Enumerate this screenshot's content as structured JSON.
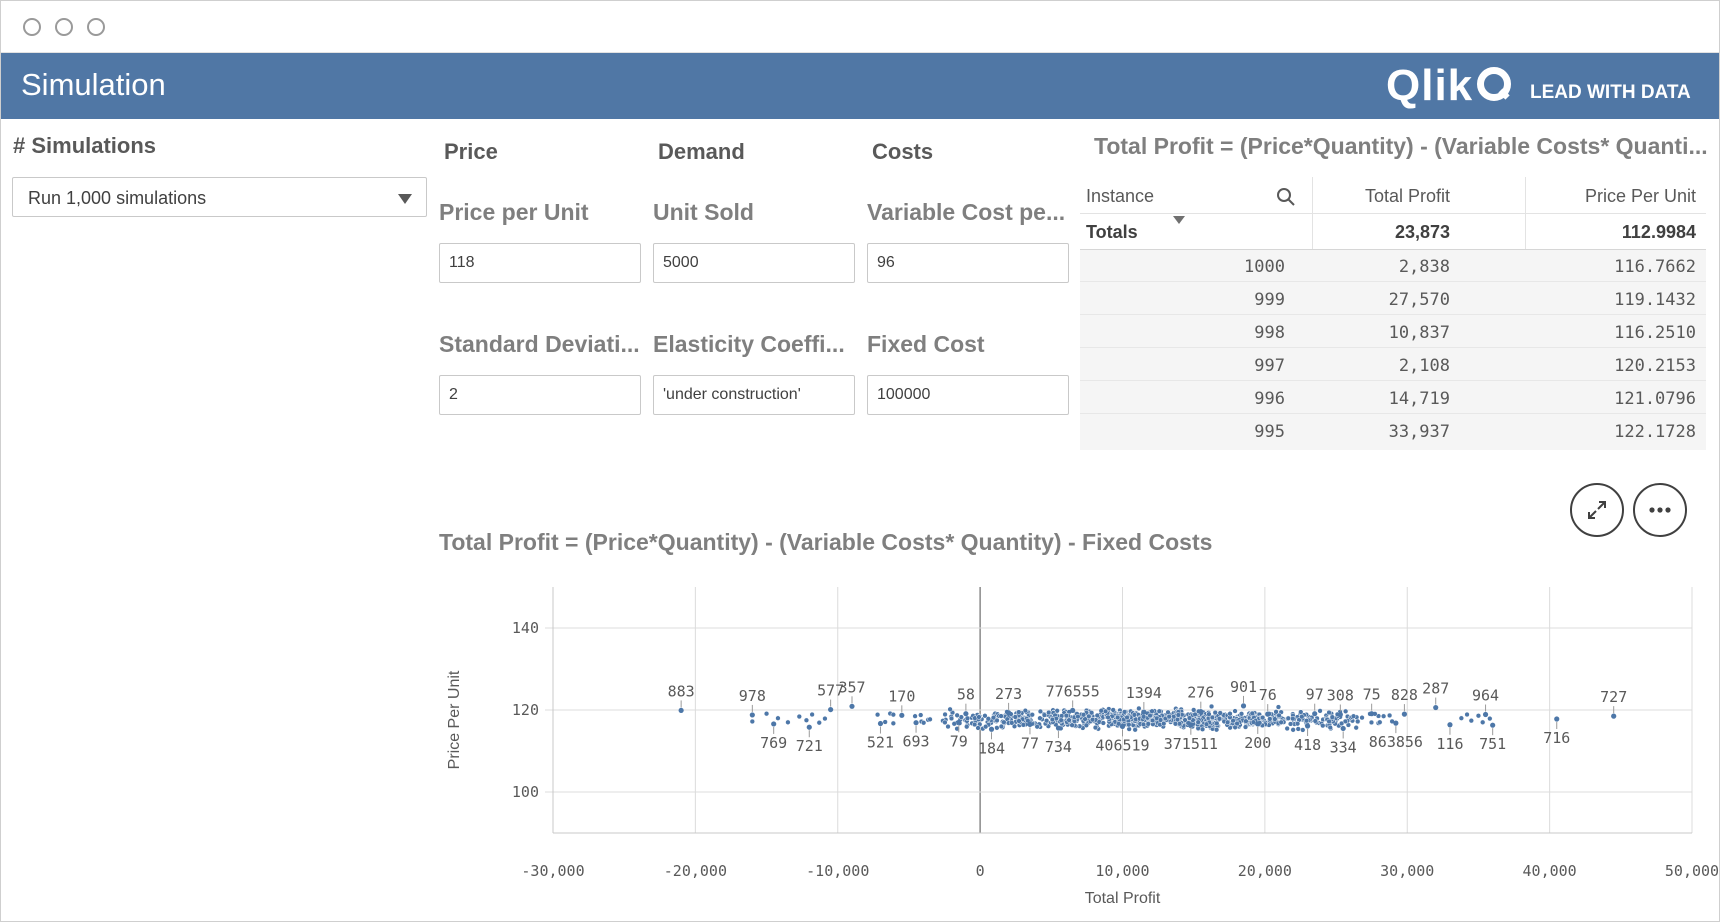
{
  "header": {
    "title": "Simulation",
    "logo_text": "Qlik",
    "tagline": "LEAD WITH DATA"
  },
  "simulations": {
    "label": "# Simulations",
    "selected": "Run 1,000 simulations"
  },
  "inputs": {
    "columns": [
      "Price",
      "Demand",
      "Costs"
    ],
    "row1": [
      {
        "label": "Price per Unit",
        "value": "118"
      },
      {
        "label": "Unit Sold",
        "value": "5000"
      },
      {
        "label": "Variable Cost pe...",
        "value": "96"
      }
    ],
    "row2": [
      {
        "label": "Standard Deviati...",
        "value": "2"
      },
      {
        "label": "Elasticity Coeffi...",
        "value": "'under construction'"
      },
      {
        "label": "Fixed Cost",
        "value": "100000"
      }
    ]
  },
  "table": {
    "title": "Total Profit = (Price*Quantity) - (Variable Costs* Quanti...",
    "headers": [
      "Instance",
      "Total Profit",
      "Price Per Unit"
    ],
    "totals": {
      "label": "Totals",
      "profit": "23,873",
      "price": "112.9984"
    },
    "rows": [
      {
        "instance": "1000",
        "profit": "2,838",
        "price": "116.7662"
      },
      {
        "instance": "999",
        "profit": "27,570",
        "price": "119.1432"
      },
      {
        "instance": "998",
        "profit": "10,837",
        "price": "116.2510"
      },
      {
        "instance": "997",
        "profit": "2,108",
        "price": "120.2153"
      },
      {
        "instance": "996",
        "profit": "14,719",
        "price": "121.0796"
      },
      {
        "instance": "995",
        "profit": "33,937",
        "price": "122.1728"
      }
    ]
  },
  "icons": {
    "expand": "expand-icon",
    "more": "more-icon",
    "search": "search-icon"
  },
  "chart_data": {
    "type": "scatter",
    "title": "Total Profit = (Price*Quantity) - (Variable Costs* Quantity) - Fixed Costs",
    "xlabel": "Total Profit",
    "ylabel": "Price Per Unit",
    "xlim": [
      -30000,
      50000
    ],
    "ylim": [
      90,
      150
    ],
    "xticks": [
      "-30,000",
      "-20,000",
      "-10,000",
      "0",
      "10,000",
      "20,000",
      "30,000",
      "40,000",
      "50,000"
    ],
    "yticks": [
      "100",
      "120",
      "140"
    ],
    "grid": true,
    "color": "#4d77a8",
    "labeled_points": [
      {
        "label": "883",
        "x": -21000,
        "y": 119.9
      },
      {
        "label": "978",
        "x": -16000,
        "y": 118.8
      },
      {
        "label": "769",
        "x": -14500,
        "y": 116.6
      },
      {
        "label": "721",
        "x": -12000,
        "y": 115.8
      },
      {
        "label": "577",
        "x": -10500,
        "y": 120.1
      },
      {
        "label": "357",
        "x": -9000,
        "y": 120.9
      },
      {
        "label": "521",
        "x": -7000,
        "y": 116.7
      },
      {
        "label": "170",
        "x": -5500,
        "y": 118.7
      },
      {
        "label": "693",
        "x": -4500,
        "y": 116.9
      },
      {
        "label": "79",
        "x": -1500,
        "y": 117.0
      },
      {
        "label": "58",
        "x": -1000,
        "y": 119.1
      },
      {
        "label": "184",
        "x": 800,
        "y": 115.3
      },
      {
        "label": "273",
        "x": 2000,
        "y": 119.3
      },
      {
        "label": "77",
        "x": 3500,
        "y": 116.5
      },
      {
        "label": "734",
        "x": 5500,
        "y": 115.6
      },
      {
        "label": "776555",
        "x": 6500,
        "y": 119.9
      },
      {
        "label": "406519",
        "x": 10000,
        "y": 116.0
      },
      {
        "label": "1394",
        "x": 11500,
        "y": 119.5
      },
      {
        "label": "371511",
        "x": 14800,
        "y": 116.4
      },
      {
        "label": "276",
        "x": 15500,
        "y": 119.6
      },
      {
        "label": "901",
        "x": 18500,
        "y": 121.0
      },
      {
        "label": "200",
        "x": 19500,
        "y": 116.6
      },
      {
        "label": "76",
        "x": 20200,
        "y": 119.0
      },
      {
        "label": "418",
        "x": 23000,
        "y": 116.1
      },
      {
        "label": "97",
        "x": 23500,
        "y": 119.1
      },
      {
        "label": "308",
        "x": 25300,
        "y": 118.9
      },
      {
        "label": "334",
        "x": 25500,
        "y": 115.5
      },
      {
        "label": "75",
        "x": 27500,
        "y": 119.1
      },
      {
        "label": "863856",
        "x": 29200,
        "y": 116.8
      },
      {
        "label": "828",
        "x": 29800,
        "y": 119.0
      },
      {
        "label": "287",
        "x": 32000,
        "y": 120.6
      },
      {
        "label": "116",
        "x": 33000,
        "y": 116.4
      },
      {
        "label": "964",
        "x": 35500,
        "y": 118.9
      },
      {
        "label": "751",
        "x": 36000,
        "y": 116.3
      },
      {
        "label": "716",
        "x": 40500,
        "y": 117.8
      },
      {
        "label": "727",
        "x": 44500,
        "y": 118.5
      }
    ],
    "cloud": {
      "x_min": -9500,
      "x_max": 33000,
      "x_center": 10000,
      "y_center": 117.8,
      "y_spread": 1.5,
      "extra_points": [
        {
          "x": -16000,
          "y": 117.2
        },
        {
          "x": -15000,
          "y": 119.1
        },
        {
          "x": -14200,
          "y": 118.0
        },
        {
          "x": -13500,
          "y": 117.0
        },
        {
          "x": -12700,
          "y": 118.4
        },
        {
          "x": -12200,
          "y": 117.5
        },
        {
          "x": -11800,
          "y": 118.9
        },
        {
          "x": -11300,
          "y": 116.9
        },
        {
          "x": -10900,
          "y": 117.9
        },
        {
          "x": 33800,
          "y": 118.0
        },
        {
          "x": 34500,
          "y": 117.4
        },
        {
          "x": 35000,
          "y": 118.6
        },
        {
          "x": 35300,
          "y": 117.0
        },
        {
          "x": 35800,
          "y": 117.9
        },
        {
          "x": 34200,
          "y": 118.9
        }
      ]
    }
  }
}
